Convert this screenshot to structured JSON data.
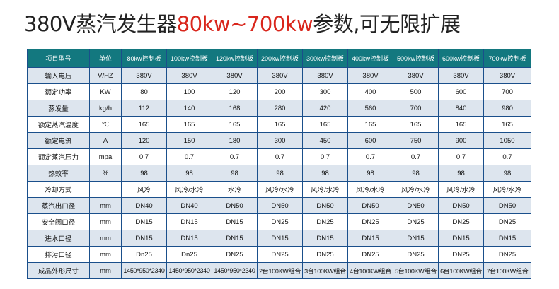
{
  "title": {
    "prefix": "380V蒸汽发生器",
    "highlight": "80kw~700kw",
    "suffix": "参数,可无限扩展"
  },
  "headers": [
    "项目型号",
    "单位",
    "80kw控制板",
    "100kw控制板",
    "120kw控制板",
    "200kw控制板",
    "300kw控制板",
    "400kw控制板",
    "500kw控制板",
    "600kw控制板",
    "700kw控制板"
  ],
  "rows": [
    [
      "输入电压",
      "V/HZ",
      "380V",
      "380V",
      "380V",
      "380V",
      "380V",
      "380V",
      "380V",
      "380V",
      "380V"
    ],
    [
      "额定功率",
      "KW",
      "80",
      "100",
      "120",
      "200",
      "300",
      "400",
      "500",
      "600",
      "700"
    ],
    [
      "蒸发量",
      "kg/h",
      "112",
      "140",
      "168",
      "280",
      "420",
      "560",
      "700",
      "840",
      "980"
    ],
    [
      "额定蒸汽温度",
      "℃",
      "165",
      "165",
      "165",
      "165",
      "165",
      "165",
      "165",
      "165",
      "165"
    ],
    [
      "额定电流",
      "A",
      "120",
      "150",
      "180",
      "300",
      "450",
      "600",
      "750",
      "900",
      "1050"
    ],
    [
      "额定蒸汽压力",
      "mpa",
      "0.7",
      "0.7",
      "0.7",
      "0.7",
      "0.7",
      "0.7",
      "0.7",
      "0.7",
      "0.7"
    ],
    [
      "热效率",
      "%",
      "98",
      "98",
      "98",
      "98",
      "98",
      "98",
      "98",
      "98",
      "98"
    ],
    [
      "冷却方式",
      "",
      "风冷",
      "风冷/水冷",
      "水冷",
      "风冷/水冷",
      "风冷/水冷",
      "风冷/水冷",
      "风冷/水冷",
      "风冷/水冷",
      "风冷/水冷"
    ],
    [
      "蒸汽出口径",
      "mm",
      "DN40",
      "DN40",
      "DN50",
      "DN50",
      "DN50",
      "DN50",
      "DN50",
      "DN50",
      "DN50"
    ],
    [
      "安全阀口径",
      "mm",
      "DN15",
      "DN15",
      "DN15",
      "DN25",
      "DN25",
      "DN25",
      "DN25",
      "DN25",
      "DN25"
    ],
    [
      "进水口径",
      "mm",
      "DN15",
      "DN15",
      "DN15",
      "DN15",
      "DN15",
      "DN15",
      "DN15",
      "DN15",
      "DN15"
    ],
    [
      "排污口径",
      "mm",
      "Dn25",
      "Dn25",
      "DN25",
      "DN25",
      "DN25",
      "DN25",
      "DN25",
      "DN25",
      "DN25"
    ],
    [
      "成品外形尺寸",
      "mm",
      "1450*950*2340",
      "1450*950*2340",
      "1450*950*2340",
      "2台100KW组合",
      "3台100KW组合",
      "4台100KW组合",
      "5台100KW组合",
      "6台100KW组合",
      "7台100KW组合"
    ]
  ]
}
